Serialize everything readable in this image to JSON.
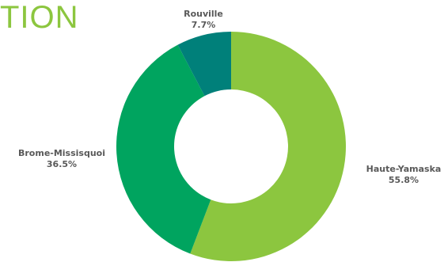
{
  "header": {
    "title_fragment": "TION"
  },
  "chart_data": {
    "type": "pie",
    "donut": true,
    "categories": [
      "Haute-Yamaska",
      "Brome-Missisquoi",
      "Rouville"
    ],
    "values": [
      55.8,
      36.5,
      7.7
    ],
    "value_labels": [
      "55.8%",
      "36.5%",
      "7.7%"
    ],
    "colors": [
      "#8cc63f",
      "#00a45f",
      "#00807a"
    ],
    "title": "",
    "legend": "none"
  }
}
